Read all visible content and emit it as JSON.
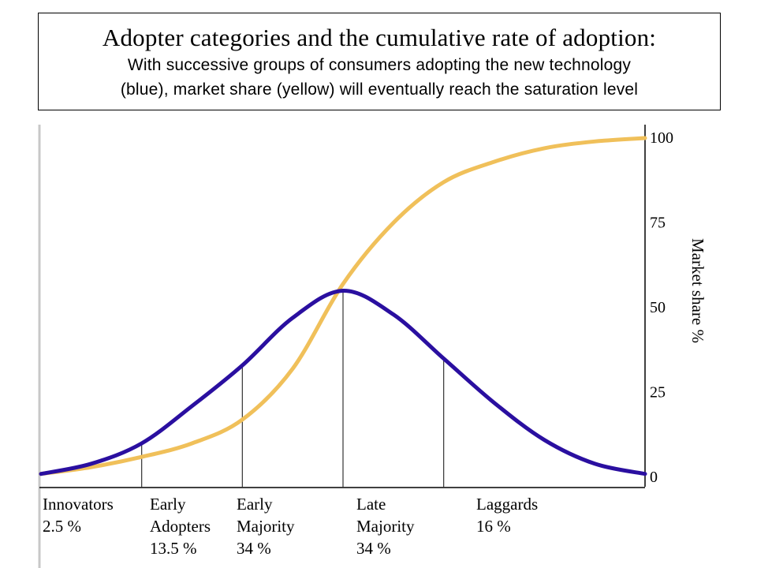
{
  "header": {
    "title": "Adopter categories and the cumulative rate of adoption:",
    "subtitle_line1": "With successive groups of consumers adopting the new technology",
    "subtitle_line2": "(blue), market share (yellow) will eventually reach the saturation level"
  },
  "chart_data": {
    "type": "line",
    "title": "",
    "xlabel": "",
    "ylabel": "Market share %",
    "ylim": [
      0,
      100
    ],
    "yticks": [
      0,
      25,
      50,
      75,
      100
    ],
    "y_axis_position": "right",
    "grid": false,
    "legend": "none",
    "colors": {
      "adoption": "#2a0fa0",
      "market_share": "#f0c05a"
    },
    "categories": [
      {
        "name": "Innovators",
        "name_line2": "",
        "percent": "2.5 %",
        "boundary_sd": -2
      },
      {
        "name": "Early",
        "name_line2": "Adopters",
        "percent": "13.5 %",
        "boundary_sd": -1
      },
      {
        "name": "Early",
        "name_line2": "Majority",
        "percent": "34 %",
        "boundary_sd": 0
      },
      {
        "name": "Late",
        "name_line2": "Majority",
        "percent": "34 %",
        "boundary_sd": 1
      },
      {
        "name": "Laggards",
        "name_line2": "",
        "percent": "16 %",
        "boundary_sd": 3
      }
    ],
    "series": [
      {
        "key": "adoption",
        "x": [
          -3,
          -2.5,
          -2,
          -1.5,
          -1,
          -0.5,
          0,
          0.5,
          1,
          1.5,
          2,
          2.5,
          3
        ],
        "values": [
          1,
          4,
          10,
          21,
          33,
          47,
          55,
          48,
          35,
          22,
          11,
          4,
          1
        ]
      },
      {
        "key": "market_share",
        "x": [
          -3,
          -2.5,
          -2,
          -1.5,
          -1,
          -0.5,
          0,
          0.5,
          1,
          1.5,
          2,
          2.5,
          3
        ],
        "values": [
          1,
          3,
          6,
          10,
          17,
          32,
          57,
          75,
          87,
          93,
          97,
          99,
          100
        ]
      }
    ]
  }
}
